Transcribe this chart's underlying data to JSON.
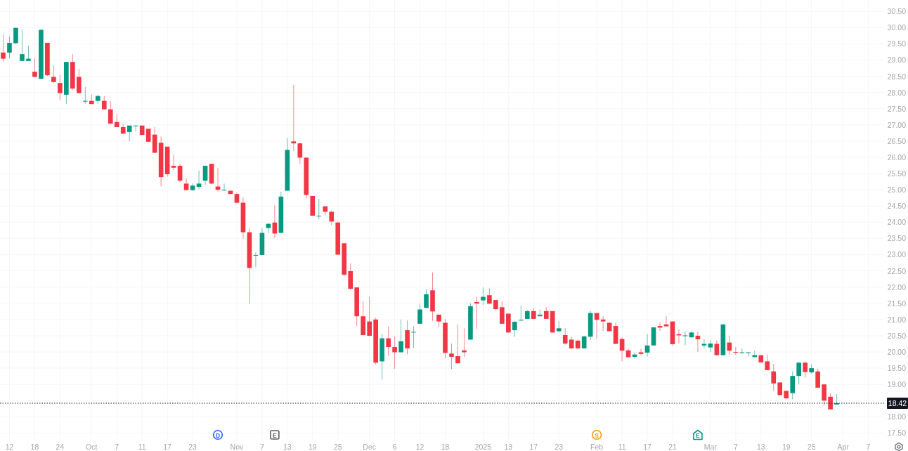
{
  "chart_data": {
    "type": "candlestick",
    "categories": [
      null,
      "12",
      null,
      null,
      null,
      "18",
      null,
      null,
      null,
      "24",
      null,
      null,
      null,
      null,
      "Oct",
      null,
      null,
      null,
      "7",
      null,
      null,
      null,
      "11",
      null,
      null,
      null,
      "17",
      null,
      null,
      null,
      "23",
      null,
      null,
      null,
      null,
      null,
      null,
      "Nov",
      null,
      null,
      null,
      "7",
      null,
      null,
      null,
      "13",
      null,
      null,
      null,
      "19",
      null,
      null,
      null,
      "25",
      null,
      null,
      null,
      null,
      "Dec",
      null,
      null,
      null,
      "6",
      null,
      null,
      null,
      "12",
      null,
      null,
      null,
      "18",
      null,
      null,
      null,
      null,
      null,
      "2025",
      null,
      null,
      null,
      "13",
      null,
      null,
      null,
      "17",
      null,
      null,
      null,
      "23",
      null,
      null,
      null,
      null,
      null,
      "Feb",
      null,
      null,
      null,
      "11",
      null,
      null,
      null,
      "17",
      null,
      null,
      null,
      "21",
      null,
      null,
      null,
      null,
      null,
      "Mar",
      null,
      null,
      null,
      "7",
      null,
      null,
      null,
      "13",
      null,
      null,
      null,
      "19",
      null,
      null,
      null,
      "25",
      null,
      null,
      null,
      null,
      "Apr",
      null,
      null,
      null,
      "7",
      null,
      null
    ],
    "ohlc": [
      [
        29.23,
        29.78,
        28.95,
        29.04
      ],
      [
        29.23,
        29.73,
        29.05,
        29.53
      ],
      [
        29.52,
        30.0,
        29.49,
        29.99
      ],
      [
        28.97,
        29.93,
        28.97,
        29.18
      ],
      [
        28.97,
        29.44,
        28.97,
        29.04
      ],
      [
        28.64,
        29.05,
        28.47,
        28.48
      ],
      [
        28.42,
        29.95,
        28.4,
        29.93
      ],
      [
        29.53,
        29.53,
        28.5,
        28.53
      ],
      [
        28.48,
        28.83,
        28.3,
        28.32
      ],
      [
        28.29,
        28.54,
        27.76,
        27.98
      ],
      [
        27.93,
        28.94,
        27.65,
        28.94
      ],
      [
        28.94,
        29.18,
        28.08,
        28.12
      ],
      [
        28.48,
        28.73,
        27.98,
        27.98
      ],
      [
        27.73,
        28.17,
        27.65,
        27.74
      ],
      [
        27.74,
        27.93,
        27.64,
        27.64
      ],
      [
        27.74,
        27.93,
        27.65,
        27.89
      ],
      [
        27.74,
        27.89,
        27.48,
        27.48
      ],
      [
        27.48,
        27.74,
        27.04,
        27.04
      ],
      [
        27.09,
        27.34,
        26.93,
        26.93
      ],
      [
        26.93,
        27.04,
        26.73,
        26.73
      ],
      [
        26.78,
        26.98,
        26.49,
        26.98
      ],
      [
        26.97,
        26.98,
        26.8,
        26.98
      ],
      [
        26.98,
        26.98,
        26.69,
        26.69
      ],
      [
        26.88,
        26.88,
        26.46,
        26.48
      ],
      [
        26.7,
        26.94,
        26.14,
        26.14
      ],
      [
        26.45,
        26.64,
        25.1,
        25.39
      ],
      [
        26.33,
        26.33,
        25.41,
        25.48
      ],
      [
        25.74,
        26.09,
        25.61,
        25.68
      ],
      [
        25.74,
        25.8,
        25.23,
        25.28
      ],
      [
        25.19,
        25.34,
        24.99,
        24.99
      ],
      [
        24.99,
        25.19,
        24.96,
        25.13
      ],
      [
        25.09,
        25.59,
        25.01,
        25.19
      ],
      [
        25.28,
        25.74,
        25.15,
        25.74
      ],
      [
        25.8,
        25.8,
        25.17,
        25.19
      ],
      [
        25.1,
        25.68,
        24.95,
        25.0
      ],
      [
        24.99,
        25.19,
        24.97,
        25.0
      ],
      [
        24.97,
        24.97,
        24.87,
        24.87
      ],
      [
        24.87,
        24.91,
        24.58,
        24.6
      ],
      [
        24.6,
        24.76,
        23.49,
        23.69
      ],
      [
        23.69,
        23.82,
        21.48,
        22.59
      ],
      [
        22.98,
        23.07,
        22.61,
        22.99
      ],
      [
        22.99,
        23.82,
        22.98,
        23.67
      ],
      [
        23.82,
        23.97,
        23.67,
        23.95
      ],
      [
        23.99,
        24.52,
        23.51,
        23.65
      ],
      [
        23.67,
        24.94,
        23.66,
        24.79
      ],
      [
        24.97,
        26.59,
        24.97,
        26.23
      ],
      [
        26.49,
        28.23,
        26.2,
        26.43
      ],
      [
        26.43,
        26.46,
        25.8,
        25.99
      ],
      [
        25.99,
        25.99,
        24.73,
        24.84
      ],
      [
        24.81,
        24.81,
        24.2,
        24.2
      ],
      [
        24.19,
        24.72,
        24.09,
        24.2
      ],
      [
        24.49,
        24.49,
        24.21,
        24.32
      ],
      [
        24.32,
        24.36,
        23.91,
        24.02
      ],
      [
        23.99,
        24.02,
        23.0,
        23.0
      ],
      [
        23.35,
        23.35,
        22.35,
        22.38
      ],
      [
        22.49,
        22.73,
        21.91,
        21.95
      ],
      [
        21.99,
        21.99,
        20.8,
        21.1
      ],
      [
        21.1,
        21.57,
        20.51,
        20.52
      ],
      [
        20.94,
        21.7,
        20.48,
        20.5
      ],
      [
        21.0,
        21.06,
        19.61,
        19.67
      ],
      [
        19.71,
        20.55,
        19.15,
        20.42
      ],
      [
        20.42,
        20.78,
        19.88,
        20.15
      ],
      [
        20.15,
        20.47,
        19.48,
        19.99
      ],
      [
        19.99,
        21.0,
        19.99,
        20.33
      ],
      [
        20.67,
        20.97,
        19.93,
        20.11
      ],
      [
        20.61,
        20.79,
        20.13,
        20.62
      ],
      [
        20.87,
        21.49,
        20.87,
        21.31
      ],
      [
        21.36,
        21.93,
        21.33,
        21.78
      ],
      [
        21.9,
        22.45,
        20.96,
        21.25
      ],
      [
        21.15,
        21.15,
        20.76,
        20.94
      ],
      [
        20.9,
        21.01,
        19.8,
        19.97
      ],
      [
        19.95,
        20.26,
        19.47,
        19.85
      ],
      [
        19.87,
        20.85,
        19.65,
        19.65
      ],
      [
        20.05,
        20.73,
        19.85,
        19.99
      ],
      [
        20.38,
        21.5,
        20.38,
        21.41
      ],
      [
        21.54,
        21.7,
        20.71,
        21.49
      ],
      [
        21.59,
        21.99,
        21.45,
        21.7
      ],
      [
        21.75,
        21.96,
        21.47,
        21.49
      ],
      [
        21.6,
        21.6,
        21.3,
        21.32
      ],
      [
        21.38,
        21.57,
        20.87,
        20.87
      ],
      [
        21.18,
        21.18,
        20.6,
        20.6
      ],
      [
        20.67,
        20.95,
        20.47,
        20.93
      ],
      [
        20.98,
        21.43,
        20.96,
        20.99
      ],
      [
        21.02,
        21.29,
        21.02,
        21.26
      ],
      [
        21.26,
        21.35,
        21.02,
        21.02
      ],
      [
        21.1,
        21.31,
        21.1,
        21.15
      ],
      [
        21.26,
        21.38,
        21.02,
        21.02
      ],
      [
        21.26,
        21.26,
        20.58,
        20.6
      ],
      [
        20.64,
        20.95,
        20.6,
        20.73
      ],
      [
        20.52,
        20.73,
        20.23,
        20.26
      ],
      [
        20.38,
        20.47,
        20.1,
        20.11
      ],
      [
        20.35,
        20.38,
        20.1,
        20.11
      ],
      [
        20.11,
        20.5,
        20.11,
        20.48
      ],
      [
        20.47,
        21.26,
        20.36,
        21.2
      ],
      [
        21.2,
        21.2,
        20.4,
        20.99
      ],
      [
        21.0,
        21.1,
        20.65,
        20.94
      ],
      [
        20.9,
        20.92,
        20.64,
        20.64
      ],
      [
        20.8,
        20.9,
        20.25,
        20.25
      ],
      [
        20.4,
        20.45,
        19.71,
        20.04
      ],
      [
        20.05,
        20.1,
        19.83,
        19.84
      ],
      [
        19.85,
        19.99,
        19.8,
        19.92
      ],
      [
        19.99,
        20.1,
        19.9,
        19.94
      ],
      [
        19.98,
        20.55,
        19.86,
        20.2
      ],
      [
        20.2,
        20.76,
        20.2,
        20.76
      ],
      [
        20.8,
        20.9,
        20.65,
        20.75
      ],
      [
        20.85,
        21.1,
        20.79,
        20.79
      ],
      [
        20.94,
        20.94,
        20.19,
        20.24
      ],
      [
        20.55,
        20.7,
        20.26,
        20.51
      ],
      [
        20.5,
        20.64,
        20.21,
        20.51
      ],
      [
        20.45,
        20.63,
        20.45,
        20.6
      ],
      [
        20.5,
        20.63,
        20.0,
        20.39
      ],
      [
        20.2,
        20.39,
        20.12,
        20.25
      ],
      [
        20.14,
        20.36,
        20.0,
        20.26
      ],
      [
        20.25,
        20.36,
        19.9,
        19.9
      ],
      [
        19.9,
        20.85,
        19.9,
        20.85
      ],
      [
        20.29,
        20.5,
        19.91,
        20.04
      ],
      [
        20.0,
        20.15,
        19.91,
        19.98
      ],
      [
        19.98,
        20.1,
        19.95,
        19.99
      ],
      [
        19.97,
        19.99,
        19.86,
        19.99
      ],
      [
        19.84,
        20.05,
        19.84,
        19.9
      ],
      [
        19.9,
        19.91,
        19.66,
        19.68
      ],
      [
        19.71,
        19.92,
        19.44,
        19.44
      ],
      [
        19.4,
        19.63,
        18.8,
        19.03
      ],
      [
        19.06,
        19.06,
        18.67,
        18.67
      ],
      [
        18.8,
        18.82,
        18.56,
        18.57
      ],
      [
        18.73,
        19.4,
        18.54,
        19.26
      ],
      [
        19.26,
        19.69,
        19.0,
        19.67
      ],
      [
        19.67,
        19.71,
        19.21,
        19.38
      ],
      [
        19.37,
        19.62,
        19.33,
        19.5
      ],
      [
        19.4,
        19.49,
        18.9,
        18.9
      ],
      [
        19.0,
        19.0,
        18.35,
        18.5
      ],
      [
        18.62,
        18.73,
        18.23,
        18.23
      ],
      [
        18.38,
        18.7,
        18.38,
        18.42
      ],
      null,
      null,
      null,
      null,
      null,
      null,
      null
    ],
    "colors": [
      "#f23645",
      "#089981",
      "#089981",
      "#089981",
      "#089981",
      "#f23645",
      "#089981",
      "#f23645",
      "#f23645",
      "#f23645",
      "#089981",
      "#f23645",
      "#f23645",
      "#089981",
      "#f23645",
      "#089981",
      "#f23645",
      "#f23645",
      "#f23645",
      "#f23645",
      "#089981",
      "#089981",
      "#f23645",
      "#f23645",
      "#f23645",
      "#f23645",
      "#f23645",
      "#f23645",
      "#f23645",
      "#f23645",
      "#089981",
      "#089981",
      "#089981",
      "#f23645",
      "#f23645",
      "#089981",
      "#f23645",
      "#f23645",
      "#f23645",
      "#f23645",
      "#089981",
      "#089981",
      "#089981",
      "#f23645",
      "#089981",
      "#089981",
      "#f23645",
      "#f23645",
      "#f23645",
      "#f23645",
      "#089981",
      "#f23645",
      "#f23645",
      "#f23645",
      "#f23645",
      "#f23645",
      "#f23645",
      "#f23645",
      "#f23645",
      "#f23645",
      "#089981",
      "#f23645",
      "#f23645",
      "#089981",
      "#f23645",
      "#089981",
      "#089981",
      "#089981",
      "#f23645",
      "#f23645",
      "#f23645",
      "#f23645",
      "#f23645",
      "#f23645",
      "#089981",
      "#f23645",
      "#089981",
      "#f23645",
      "#f23645",
      "#f23645",
      "#f23645",
      "#089981",
      "#089981",
      "#089981",
      "#f23645",
      "#089981",
      "#f23645",
      "#f23645",
      "#089981",
      "#f23645",
      "#f23645",
      "#f23645",
      "#089981",
      "#089981",
      "#f23645",
      "#f23645",
      "#f23645",
      "#f23645",
      "#f23645",
      "#f23645",
      "#089981",
      "#f23645",
      "#089981",
      "#089981",
      "#f23645",
      "#f23645",
      "#f23645",
      "#f23645",
      "#089981",
      "#089981",
      "#f23645",
      "#089981",
      "#089981",
      "#f23645",
      "#089981",
      "#f23645",
      "#f23645",
      "#089981",
      "#089981",
      "#089981",
      "#f23645",
      "#f23645",
      "#f23645",
      "#f23645",
      "#f23645",
      "#089981",
      "#089981",
      "#f23645",
      "#089981",
      "#f23645",
      "#f23645",
      "#f23645",
      "#089981",
      null,
      null,
      null,
      null,
      null,
      null,
      null
    ],
    "ylim": [
      17.25,
      30.85
    ],
    "yticks": [
      {
        "value": 30.5,
        "label": "30.50"
      },
      {
        "value": 30,
        "label": "30.00"
      },
      {
        "value": 29.5,
        "label": "29.50"
      },
      {
        "value": 29,
        "label": "29.00"
      },
      {
        "value": 28.5,
        "label": "28.50"
      },
      {
        "value": 28,
        "label": "28.00"
      },
      {
        "value": 27.5,
        "label": "27.50"
      },
      {
        "value": 27,
        "label": "27.00"
      },
      {
        "value": 26.5,
        "label": "26.50"
      },
      {
        "value": 26,
        "label": "26.00"
      },
      {
        "value": 25.5,
        "label": "25.50"
      },
      {
        "value": 25,
        "label": "25.00"
      },
      {
        "value": 24.5,
        "label": "24.50"
      },
      {
        "value": 24,
        "label": "24.00"
      },
      {
        "value": 23.5,
        "label": "23.50"
      },
      {
        "value": 23,
        "label": "23.00"
      },
      {
        "value": 22.5,
        "label": "22.50"
      },
      {
        "value": 22,
        "label": "22.00"
      },
      {
        "value": 21.5,
        "label": "21.50"
      },
      {
        "value": 21,
        "label": "21.00"
      },
      {
        "value": 20.5,
        "label": "20.50"
      },
      {
        "value": 20,
        "label": "20.00"
      },
      {
        "value": 19.5,
        "label": "19.50"
      },
      {
        "value": 19,
        "label": "19.00"
      },
      {
        "value": 18.5,
        "label": null
      },
      {
        "value": 18,
        "label": "18.00"
      },
      {
        "value": 17.5,
        "label": "17.50"
      }
    ],
    "grid": true,
    "ref_lines": [
      {
        "axis": "y",
        "value": 18.42,
        "label": "18.42",
        "color": "#131722",
        "line_style": "dotted"
      }
    ],
    "annotations": [
      "D",
      "E",
      "S",
      "E"
    ]
  }
}
